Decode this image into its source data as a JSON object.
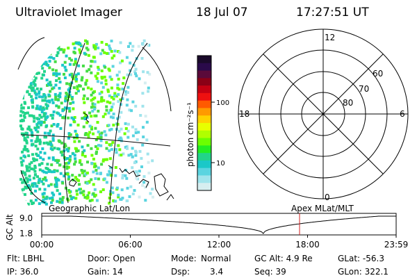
{
  "header": {
    "instrument": "Ultraviolet Imager",
    "date": "18 Jul 07",
    "time": "17:27:51 UT"
  },
  "map_panel": {
    "label": "Geographic Lat/Lon"
  },
  "colorbar": {
    "unit_label": "photon cm⁻²s⁻¹",
    "ticks": [
      "100",
      "10"
    ],
    "colors": [
      "#1a0a2a",
      "#2a0a4a",
      "#5a0a3a",
      "#8a0016",
      "#c40012",
      "#ee1010",
      "#ff5a00",
      "#ff9a00",
      "#ffd200",
      "#e8ff00",
      "#b0ff00",
      "#6cff00",
      "#22ee22",
      "#22d48a",
      "#1ac8c8",
      "#5ad4e0",
      "#a0e4ec",
      "#d6eef0"
    ]
  },
  "polar_panel": {
    "label": "Apex MLat/MLT",
    "mlt_labels": {
      "top": "12",
      "bottom": "0",
      "left": "18",
      "right": "6"
    },
    "lat_labels": [
      "60",
      "70",
      "80"
    ]
  },
  "timeline": {
    "ylabel": "GC Alt",
    "y_ticks": [
      "9.0",
      "1.8"
    ],
    "x_ticks": [
      "00:00",
      "06:00",
      "12:00",
      "18:00",
      "23:59"
    ],
    "marker_time_hours": 17.46,
    "marker_color": "#d02020"
  },
  "footer": {
    "flt": "Flt: LBHL",
    "door": "Door: Open",
    "mode_label": "Mode:",
    "mode_value": "Normal",
    "gc_alt": "GC Alt: 4.9 Re",
    "glat": "GLat: -56.3",
    "ip": "IP: 36.0",
    "gain": "Gain: 14",
    "dsp_label": "Dsp:",
    "dsp_value": "3.4",
    "seq": "Seq: 39",
    "glon": "GLon: 322.1"
  }
}
